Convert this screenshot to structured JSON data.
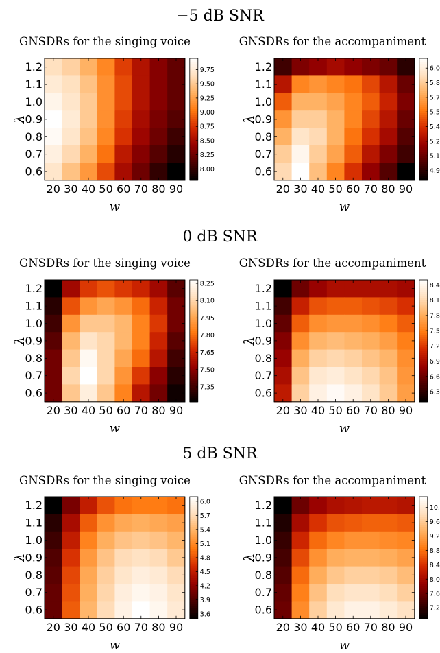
{
  "figure": {
    "x_tick_labels": [
      "20",
      "30",
      "40",
      "50",
      "60",
      "70",
      "80",
      "90"
    ],
    "y_tick_labels": [
      "1.2",
      "1.1",
      "1.0",
      "0.9",
      "0.8",
      "0.7",
      "0.6"
    ],
    "xlabel": "w",
    "ylabel": "λ",
    "colormap": [
      "#000000",
      "#4b0000",
      "#960000",
      "#d42a00",
      "#ff7a10",
      "#ffb060",
      "#ffe0bf",
      "#ffffff"
    ]
  },
  "chart_data": [
    {
      "type": "heatmap",
      "group_title": "−5 dB SNR",
      "title": "GNSDRs for the singing voice",
      "x": [
        20,
        30,
        40,
        50,
        60,
        70,
        80,
        90
      ],
      "y": [
        1.2,
        1.1,
        1.0,
        0.9,
        0.8,
        0.7,
        0.6
      ],
      "colorbar": {
        "min": 7.8,
        "max": 9.95,
        "ticks": [
          "9.75",
          "9.50",
          "9.25",
          "9.00",
          "8.75",
          "8.50",
          "8.25",
          "8.00"
        ]
      },
      "values": [
        [
          9.65,
          9.55,
          9.35,
          9.1,
          8.8,
          8.55,
          8.35,
          8.2
        ],
        [
          9.75,
          9.65,
          9.45,
          9.15,
          8.85,
          8.55,
          8.35,
          8.2
        ],
        [
          9.85,
          9.7,
          9.5,
          9.15,
          8.85,
          8.55,
          8.35,
          8.2
        ],
        [
          9.95,
          9.75,
          9.5,
          9.15,
          8.8,
          8.5,
          8.3,
          8.15
        ],
        [
          9.9,
          9.7,
          9.45,
          9.1,
          8.75,
          8.45,
          8.25,
          8.05
        ],
        [
          9.8,
          9.6,
          9.35,
          9.0,
          8.6,
          8.35,
          8.15,
          7.95
        ],
        [
          9.7,
          9.45,
          9.2,
          8.85,
          8.5,
          8.25,
          8.0,
          7.8
        ]
      ]
    },
    {
      "type": "heatmap",
      "group_title": "",
      "title": "GNSDRs for the accompaniment",
      "x": [
        20,
        30,
        40,
        50,
        60,
        70,
        80,
        90
      ],
      "y": [
        1.2,
        1.1,
        1.0,
        0.9,
        0.8,
        0.7,
        0.6
      ],
      "colorbar": {
        "min": 4.85,
        "max": 6.1,
        "ticks": [
          "6.00",
          "5.85",
          "5.70",
          "5.55",
          "5.40",
          "5.25",
          "5.10",
          "4.95"
        ]
      },
      "values": [
        [
          5.0,
          5.15,
          5.2,
          5.25,
          5.2,
          5.15,
          5.1,
          4.95
        ],
        [
          5.3,
          5.6,
          5.65,
          5.6,
          5.55,
          5.45,
          5.3,
          5.1
        ],
        [
          5.5,
          5.75,
          5.75,
          5.7,
          5.6,
          5.5,
          5.35,
          5.15
        ],
        [
          5.65,
          5.85,
          5.85,
          5.75,
          5.6,
          5.45,
          5.3,
          5.1
        ],
        [
          5.75,
          5.95,
          5.9,
          5.75,
          5.55,
          5.4,
          5.25,
          5.05
        ],
        [
          5.85,
          6.05,
          5.85,
          5.7,
          5.5,
          5.3,
          5.15,
          5.0
        ],
        [
          5.9,
          6.1,
          5.8,
          5.6,
          5.4,
          5.2,
          5.05,
          4.85
        ]
      ]
    },
    {
      "type": "heatmap",
      "group_title": "0 dB SNR",
      "title": "GNSDRs for the singing voice",
      "x": [
        20,
        30,
        40,
        50,
        60,
        70,
        80,
        90
      ],
      "y": [
        1.2,
        1.1,
        1.0,
        0.9,
        0.8,
        0.7,
        0.6
      ],
      "colorbar": {
        "min": 7.22,
        "max": 8.28,
        "ticks": [
          "8.25",
          "8.10",
          "7.95",
          "7.80",
          "7.65",
          "7.50",
          "7.35"
        ]
      },
      "values": [
        [
          7.22,
          7.55,
          7.7,
          7.75,
          7.7,
          7.65,
          7.55,
          7.4
        ],
        [
          7.3,
          7.75,
          7.9,
          7.95,
          7.9,
          7.8,
          7.65,
          7.45
        ],
        [
          7.35,
          7.9,
          8.05,
          8.05,
          8.0,
          7.85,
          7.7,
          7.45
        ],
        [
          7.4,
          8.0,
          8.15,
          8.1,
          8.0,
          7.85,
          7.65,
          7.4
        ],
        [
          7.45,
          8.05,
          8.25,
          8.1,
          7.95,
          7.8,
          7.6,
          7.35
        ],
        [
          7.45,
          8.1,
          8.28,
          8.1,
          7.9,
          7.7,
          7.5,
          7.3
        ],
        [
          7.45,
          8.05,
          8.2,
          8.05,
          7.85,
          7.6,
          7.45,
          7.25
        ]
      ]
    },
    {
      "type": "heatmap",
      "group_title": "",
      "title": "GNSDRs for the accompaniment",
      "x": [
        20,
        30,
        40,
        50,
        60,
        70,
        80,
        90
      ],
      "y": [
        1.2,
        1.1,
        1.0,
        0.9,
        0.8,
        0.7,
        0.6
      ],
      "colorbar": {
        "min": 6.1,
        "max": 8.5,
        "ticks": [
          "8.4",
          "8.1",
          "7.8",
          "7.5",
          "7.2",
          "6.9",
          "6.6",
          "6.3"
        ]
      },
      "values": [
        [
          6.1,
          6.6,
          6.8,
          6.9,
          6.9,
          6.9,
          6.9,
          6.85
        ],
        [
          6.4,
          7.05,
          7.3,
          7.35,
          7.35,
          7.3,
          7.25,
          7.15
        ],
        [
          6.55,
          7.35,
          7.6,
          7.65,
          7.65,
          7.6,
          7.5,
          7.35
        ],
        [
          6.7,
          7.6,
          7.85,
          7.9,
          7.85,
          7.8,
          7.7,
          7.5
        ],
        [
          6.8,
          7.8,
          8.05,
          8.1,
          8.05,
          7.95,
          7.85,
          7.6
        ],
        [
          6.9,
          7.95,
          8.25,
          8.3,
          8.2,
          8.1,
          7.95,
          7.65
        ],
        [
          7.0,
          8.05,
          8.35,
          8.45,
          8.35,
          8.2,
          8.0,
          7.7
        ]
      ]
    },
    {
      "type": "heatmap",
      "group_title": "5 dB SNR",
      "title": "GNSDRs for the singing voice",
      "x": [
        20,
        30,
        40,
        50,
        60,
        70,
        80,
        90
      ],
      "y": [
        1.2,
        1.1,
        1.0,
        0.9,
        0.8,
        0.7,
        0.6
      ],
      "colorbar": {
        "min": 3.5,
        "max": 6.1,
        "ticks": [
          "6.0",
          "5.7",
          "5.4",
          "5.1",
          "4.8",
          "4.5",
          "4.2",
          "3.9",
          "3.6"
        ]
      },
      "values": [
        [
          3.5,
          4.1,
          4.5,
          4.8,
          4.95,
          5.0,
          5.0,
          4.95
        ],
        [
          3.7,
          4.35,
          4.85,
          5.15,
          5.3,
          5.35,
          5.3,
          5.25
        ],
        [
          3.8,
          4.5,
          5.05,
          5.35,
          5.5,
          5.55,
          5.5,
          5.4
        ],
        [
          3.9,
          4.65,
          5.2,
          5.5,
          5.7,
          5.75,
          5.7,
          5.55
        ],
        [
          3.95,
          4.75,
          5.3,
          5.6,
          5.8,
          5.9,
          5.85,
          5.7
        ],
        [
          4.0,
          4.8,
          5.35,
          5.65,
          5.9,
          6.0,
          5.95,
          5.8
        ],
        [
          4.0,
          4.85,
          5.4,
          5.7,
          5.95,
          6.1,
          6.0,
          5.85
        ]
      ]
    },
    {
      "type": "heatmap",
      "group_title": "",
      "title": "GNSDRs for the accompaniment",
      "x": [
        20,
        30,
        40,
        50,
        60,
        70,
        80,
        90
      ],
      "y": [
        1.2,
        1.1,
        1.0,
        0.9,
        0.8,
        0.7,
        0.6
      ],
      "colorbar": {
        "min": 6.9,
        "max": 10.3,
        "ticks": [
          "10.0",
          "9.6",
          "9.2",
          "8.8",
          "8.4",
          "8.0",
          "7.6",
          "7.2"
        ]
      },
      "values": [
        [
          6.9,
          7.6,
          7.9,
          8.05,
          8.1,
          8.15,
          8.15,
          8.1
        ],
        [
          7.1,
          8.0,
          8.4,
          8.6,
          8.65,
          8.7,
          8.7,
          8.65
        ],
        [
          7.25,
          8.3,
          8.75,
          8.95,
          9.05,
          9.05,
          9.0,
          8.95
        ],
        [
          7.35,
          8.55,
          9.05,
          9.3,
          9.35,
          9.35,
          9.3,
          9.2
        ],
        [
          7.45,
          8.75,
          9.3,
          9.55,
          9.65,
          9.65,
          9.6,
          9.45
        ],
        [
          7.55,
          8.9,
          9.5,
          9.8,
          9.9,
          9.9,
          9.8,
          9.65
        ],
        [
          7.6,
          9.0,
          9.65,
          9.95,
          10.1,
          10.1,
          10.0,
          9.85
        ]
      ]
    }
  ]
}
